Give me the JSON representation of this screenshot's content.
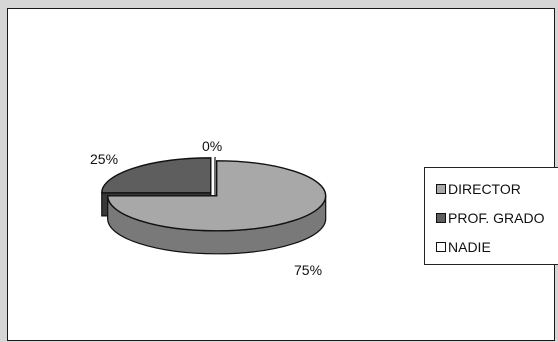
{
  "chart_data": {
    "type": "pie",
    "title": "",
    "categories": [
      "DIRECTOR",
      "PROF. GRADO",
      "NADIE"
    ],
    "values": [
      75,
      25,
      0
    ],
    "data_labels": [
      "75%",
      "25%",
      "0%"
    ],
    "legend_position": "right",
    "colors": [
      "#a8a8a8",
      "#5e5e5e",
      "#ffffff"
    ],
    "style": "3d-exploded"
  }
}
